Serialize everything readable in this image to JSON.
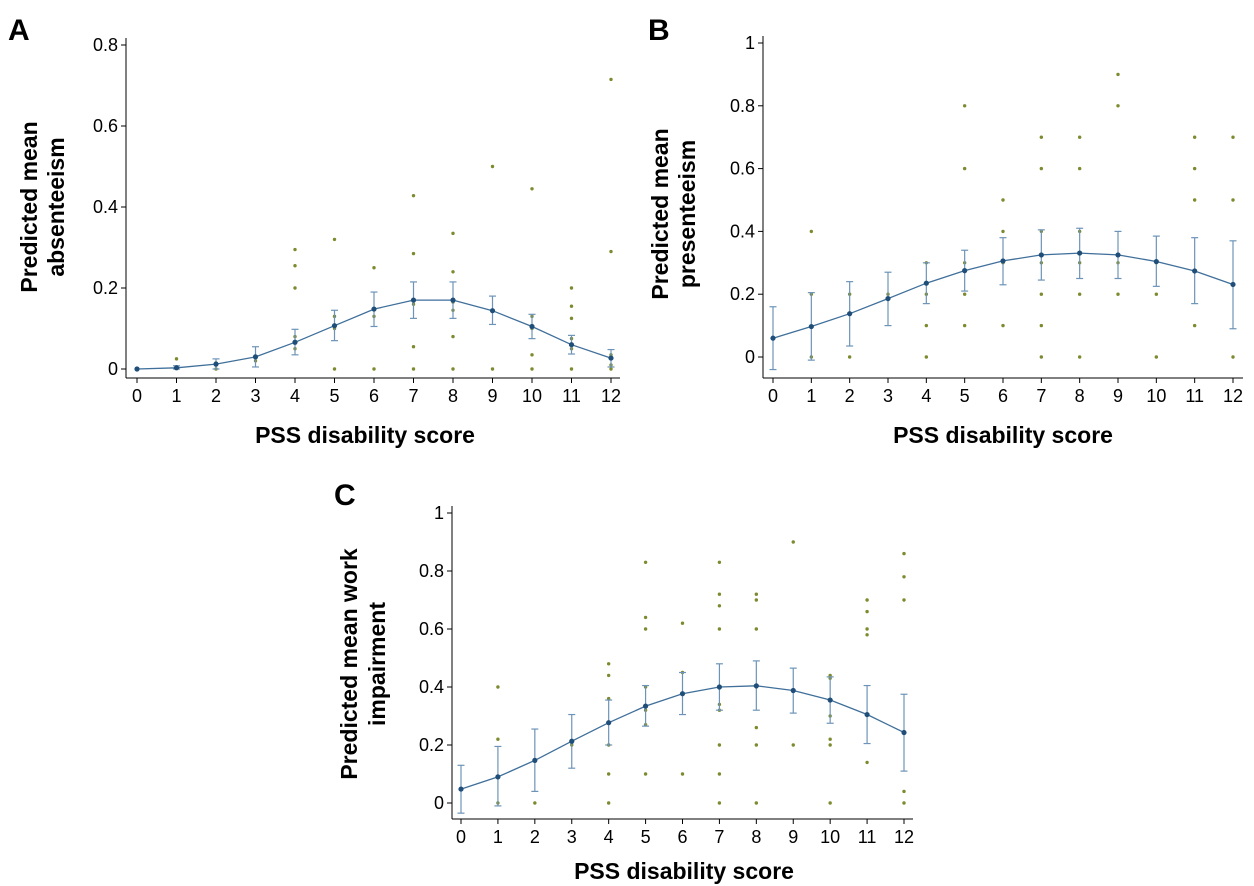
{
  "chart_data": [
    {
      "type": "line",
      "panel_label": "A",
      "xlabel": "PSS disability score",
      "ylabel": [
        "Predicted mean",
        "absenteeism"
      ],
      "xlim": [
        0,
        12
      ],
      "ylim": [
        0,
        0.8
      ],
      "x": [
        0,
        1,
        2,
        3,
        4,
        5,
        6,
        7,
        8,
        9,
        10,
        11,
        12
      ],
      "xticks": [
        "0",
        "1",
        "2",
        "3",
        "4",
        "5",
        "6",
        "7",
        "8",
        "9",
        "10",
        "11",
        "12"
      ],
      "yticks": [
        0,
        0.2,
        0.4,
        0.6,
        0.8
      ],
      "ytick_labels": [
        "0",
        "0.2",
        "0.4",
        "0.6",
        "0.8"
      ],
      "grid": false,
      "series": [
        {
          "kind": "predicted",
          "values": [
            0.0,
            0.003,
            0.012,
            0.03,
            0.066,
            0.107,
            0.148,
            0.17,
            0.17,
            0.144,
            0.105,
            0.06,
            0.027
          ],
          "ci_low": [
            0.0,
            0.0,
            0.0,
            0.005,
            0.035,
            0.07,
            0.105,
            0.125,
            0.125,
            0.11,
            0.075,
            0.037,
            0.005
          ],
          "ci_high": [
            0.0,
            0.008,
            0.025,
            0.055,
            0.098,
            0.145,
            0.19,
            0.215,
            0.215,
            0.18,
            0.135,
            0.083,
            0.048
          ]
        },
        {
          "kind": "observed",
          "points": [
            [
              1,
              0.025
            ],
            [
              1,
              0.005
            ],
            [
              2,
              0.015
            ],
            [
              2,
              0.0
            ],
            [
              3,
              0.02
            ],
            [
              4,
              0.295
            ],
            [
              4,
              0.255
            ],
            [
              4,
              0.2
            ],
            [
              4,
              0.08
            ],
            [
              4,
              0.05
            ],
            [
              5,
              0.32
            ],
            [
              5,
              0.13
            ],
            [
              5,
              0.1
            ],
            [
              5,
              0.0
            ],
            [
              6,
              0.25
            ],
            [
              6,
              0.13
            ],
            [
              6,
              0.0
            ],
            [
              7,
              0.428
            ],
            [
              7,
              0.285
            ],
            [
              7,
              0.16
            ],
            [
              7,
              0.055
            ],
            [
              7,
              0.0
            ],
            [
              8,
              0.335
            ],
            [
              8,
              0.24
            ],
            [
              8,
              0.165
            ],
            [
              8,
              0.145
            ],
            [
              8,
              0.08
            ],
            [
              8,
              0.0
            ],
            [
              9,
              0.5
            ],
            [
              9,
              0.145
            ],
            [
              9,
              0.0
            ],
            [
              10,
              0.445
            ],
            [
              10,
              0.13
            ],
            [
              10,
              0.1
            ],
            [
              10,
              0.035
            ],
            [
              10,
              0.0
            ],
            [
              11,
              0.2
            ],
            [
              11,
              0.155
            ],
            [
              11,
              0.125
            ],
            [
              11,
              0.075
            ],
            [
              11,
              0.05
            ],
            [
              11,
              0.0
            ],
            [
              12,
              0.715
            ],
            [
              12,
              0.29
            ],
            [
              12,
              0.035
            ],
            [
              12,
              0.01
            ],
            [
              12,
              0.0
            ]
          ]
        }
      ]
    },
    {
      "type": "line",
      "panel_label": "B",
      "xlabel": "PSS disability score",
      "ylabel": [
        "Predicted mean",
        "presenteeism"
      ],
      "xlim": [
        0,
        12
      ],
      "ylim": [
        0,
        1
      ],
      "x": [
        0,
        1,
        2,
        3,
        4,
        5,
        6,
        7,
        8,
        9,
        10,
        11,
        12
      ],
      "xticks": [
        "0",
        "1",
        "2",
        "3",
        "4",
        "5",
        "6",
        "7",
        "8",
        "9",
        "10",
        "11",
        "12"
      ],
      "yticks": [
        0,
        0.2,
        0.4,
        0.6,
        0.8,
        1
      ],
      "ytick_labels": [
        "0",
        "0.2",
        "0.4",
        "0.6",
        "0.8",
        "1"
      ],
      "grid": false,
      "series": [
        {
          "kind": "predicted",
          "values": [
            0.06,
            0.097,
            0.138,
            0.186,
            0.235,
            0.275,
            0.306,
            0.325,
            0.331,
            0.325,
            0.304,
            0.274,
            0.231
          ],
          "ci_low": [
            -0.04,
            -0.01,
            0.035,
            0.1,
            0.17,
            0.21,
            0.23,
            0.245,
            0.25,
            0.25,
            0.225,
            0.17,
            0.09
          ],
          "ci_high": [
            0.16,
            0.205,
            0.24,
            0.27,
            0.3,
            0.34,
            0.38,
            0.405,
            0.41,
            0.4,
            0.385,
            0.38,
            0.37
          ]
        },
        {
          "kind": "observed",
          "points": [
            [
              1,
              0.4
            ],
            [
              1,
              0.2
            ],
            [
              1,
              0.0
            ],
            [
              2,
              0.2
            ],
            [
              2,
              0.0
            ],
            [
              3,
              0.2
            ],
            [
              4,
              0.3
            ],
            [
              4,
              0.2
            ],
            [
              4,
              0.1
            ],
            [
              4,
              0.0
            ],
            [
              5,
              0.8
            ],
            [
              5,
              0.6
            ],
            [
              5,
              0.3
            ],
            [
              5,
              0.2
            ],
            [
              5,
              0.1
            ],
            [
              6,
              0.5
            ],
            [
              6,
              0.4
            ],
            [
              6,
              0.3
            ],
            [
              6,
              0.1
            ],
            [
              7,
              0.7
            ],
            [
              7,
              0.6
            ],
            [
              7,
              0.4
            ],
            [
              7,
              0.3
            ],
            [
              7,
              0.2
            ],
            [
              7,
              0.1
            ],
            [
              7,
              0.0
            ],
            [
              8,
              0.7
            ],
            [
              8,
              0.6
            ],
            [
              8,
              0.4
            ],
            [
              8,
              0.3
            ],
            [
              8,
              0.2
            ],
            [
              8,
              0.0
            ],
            [
              9,
              0.9
            ],
            [
              9,
              0.8
            ],
            [
              9,
              0.3
            ],
            [
              9,
              0.2
            ],
            [
              10,
              0.3
            ],
            [
              10,
              0.2
            ],
            [
              10,
              0.0
            ],
            [
              11,
              0.7
            ],
            [
              11,
              0.6
            ],
            [
              11,
              0.5
            ],
            [
              11,
              0.1
            ],
            [
              12,
              0.7
            ],
            [
              12,
              0.5
            ],
            [
              12,
              0.0
            ]
          ]
        }
      ]
    },
    {
      "type": "line",
      "panel_label": "C",
      "xlabel": "PSS disability score",
      "ylabel": [
        "Predicted mean work",
        "impairment"
      ],
      "xlim": [
        0,
        12
      ],
      "ylim": [
        0,
        1
      ],
      "x": [
        0,
        1,
        2,
        3,
        4,
        5,
        6,
        7,
        8,
        9,
        10,
        11,
        12
      ],
      "xticks": [
        "0",
        "1",
        "2",
        "3",
        "4",
        "5",
        "6",
        "7",
        "8",
        "9",
        "10",
        "11",
        "12"
      ],
      "yticks": [
        0,
        0.2,
        0.4,
        0.6,
        0.8,
        1
      ],
      "ytick_labels": [
        "0",
        "0.2",
        "0.4",
        "0.6",
        "0.8",
        "1"
      ],
      "grid": false,
      "series": [
        {
          "kind": "predicted",
          "values": [
            0.048,
            0.09,
            0.147,
            0.213,
            0.277,
            0.334,
            0.377,
            0.4,
            0.404,
            0.388,
            0.355,
            0.305,
            0.243
          ],
          "ci_low": [
            -0.035,
            -0.01,
            0.04,
            0.12,
            0.2,
            0.265,
            0.305,
            0.32,
            0.32,
            0.31,
            0.275,
            0.205,
            0.11
          ],
          "ci_high": [
            0.13,
            0.195,
            0.255,
            0.305,
            0.355,
            0.405,
            0.45,
            0.48,
            0.49,
            0.465,
            0.435,
            0.405,
            0.375
          ]
        },
        {
          "kind": "observed",
          "points": [
            [
              1,
              0.4
            ],
            [
              1,
              0.22
            ],
            [
              1,
              0.0
            ],
            [
              2,
              0.0
            ],
            [
              3,
              0.2
            ],
            [
              4,
              0.48
            ],
            [
              4,
              0.44
            ],
            [
              4,
              0.36
            ],
            [
              4,
              0.2
            ],
            [
              4,
              0.1
            ],
            [
              4,
              0.0
            ],
            [
              5,
              0.83
            ],
            [
              5,
              0.64
            ],
            [
              5,
              0.6
            ],
            [
              5,
              0.4
            ],
            [
              5,
              0.32
            ],
            [
              5,
              0.27
            ],
            [
              5,
              0.1
            ],
            [
              6,
              0.62
            ],
            [
              6,
              0.45
            ],
            [
              6,
              0.1
            ],
            [
              7,
              0.83
            ],
            [
              7,
              0.72
            ],
            [
              7,
              0.68
            ],
            [
              7,
              0.6
            ],
            [
              7,
              0.34
            ],
            [
              7,
              0.32
            ],
            [
              7,
              0.2
            ],
            [
              7,
              0.1
            ],
            [
              7,
              0.0
            ],
            [
              8,
              0.72
            ],
            [
              8,
              0.7
            ],
            [
              8,
              0.6
            ],
            [
              8,
              0.4
            ],
            [
              8,
              0.26
            ],
            [
              8,
              0.2
            ],
            [
              8,
              0.0
            ],
            [
              9,
              0.9
            ],
            [
              9,
              0.2
            ],
            [
              10,
              0.44
            ],
            [
              10,
              0.43
            ],
            [
              10,
              0.3
            ],
            [
              10,
              0.22
            ],
            [
              10,
              0.2
            ],
            [
              10,
              0.0
            ],
            [
              11,
              0.7
            ],
            [
              11,
              0.66
            ],
            [
              11,
              0.6
            ],
            [
              11,
              0.58
            ],
            [
              11,
              0.14
            ],
            [
              12,
              0.86
            ],
            [
              12,
              0.78
            ],
            [
              12,
              0.7
            ],
            [
              12,
              0.04
            ],
            [
              12,
              0.0
            ]
          ]
        }
      ]
    }
  ],
  "colors": {
    "line": "#3f6f9a",
    "marker": "#1f4e79",
    "error_bar": "#6d94b8",
    "observed_points": "#7d8a2e"
  }
}
